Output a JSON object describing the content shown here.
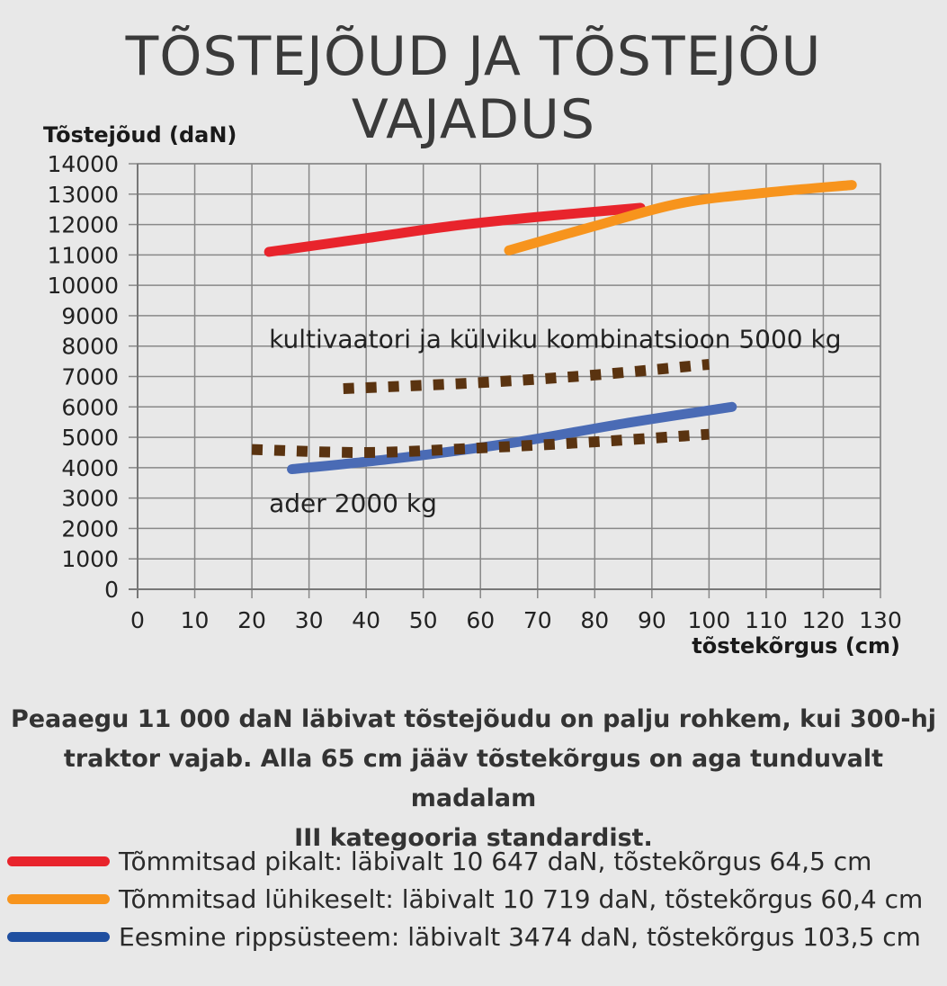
{
  "header": {
    "title": "TÕSTEJÕUD JA TÕSTEJÕU VAJADUS"
  },
  "caption": {
    "lines": [
      "Peaaegu 11 000 daN läbivat tõstejõudu on palju rohkem, kui 300-hj",
      "traktor vajab. Alla 65 cm jääv tõstekõrgus on aga tunduvalt madalam",
      "III kategooria standardist."
    ]
  },
  "legend": {
    "items": [
      {
        "label": "Tõmmitsad pikalt: läbivalt 10 647 daN, tõstekõrgus 64,5 cm",
        "color": "#e8242c"
      },
      {
        "label": "Tõmmitsad lühikeselt: läbivalt 10 719 daN, tõstekõrgus 60,4 cm",
        "color": "#f7941d"
      },
      {
        "label": "Eesmine rippsüsteem: läbivalt 3474 daN, tõstekõrgus 103,5 cm",
        "color": "#1f4fa0"
      }
    ]
  },
  "chart_data": {
    "type": "line",
    "title": "TÕSTEJÕUD JA TÕSTEJÕU VAJADUS",
    "xlabel": "tõstekõrgus (cm)",
    "ylabel": "Tõstejõud (daN)",
    "xlim": [
      0,
      130
    ],
    "ylim": [
      0,
      14000
    ],
    "xticks": [
      0,
      10,
      20,
      30,
      40,
      50,
      60,
      70,
      80,
      90,
      100,
      110,
      120,
      130
    ],
    "yticks": [
      0,
      1000,
      2000,
      3000,
      4000,
      5000,
      6000,
      7000,
      8000,
      9000,
      10000,
      11000,
      12000,
      13000,
      14000
    ],
    "grid": true,
    "series": [
      {
        "name": "Tõmmitsad pikalt: läbivalt 10 647 daN, tõstekõrgus 64,5 cm",
        "color": "#e8242c",
        "style": "solid",
        "x": [
          23,
          40,
          55,
          70,
          88
        ],
        "y": [
          11100,
          11550,
          11950,
          12250,
          12550
        ]
      },
      {
        "name": "Tõmmitsad lühikeselt: läbivalt 10 719 daN, tõstekõrgus 60,4 cm",
        "color": "#f7941d",
        "style": "solid",
        "x": [
          65,
          80,
          95,
          110,
          125
        ],
        "y": [
          11150,
          11950,
          12700,
          13050,
          13300
        ]
      },
      {
        "name": "Eesmine rippsüsteem: läbivalt 3474 daN, tõstekõrgus 103,5 cm",
        "color": "#4a6bb5",
        "style": "solid",
        "x": [
          27,
          45,
          65,
          85,
          104
        ],
        "y": [
          3950,
          4300,
          4800,
          5450,
          6000
        ]
      },
      {
        "name": "",
        "color": "#5a3310",
        "style": "dotted",
        "x": [
          36,
          60,
          80,
          100
        ],
        "y": [
          6600,
          6800,
          7050,
          7400
        ]
      },
      {
        "name": "",
        "color": "#5a3310",
        "style": "dotted",
        "x": [
          20,
          40,
          60,
          80,
          100
        ],
        "y": [
          4600,
          4500,
          4650,
          4850,
          5100
        ]
      }
    ],
    "annotations": [
      {
        "text": "kultivaatori ja külviku kombinatsioon 5000 kg",
        "x": 23,
        "y": 7950
      },
      {
        "text": "ader 2000 kg",
        "x": 23,
        "y": 2550
      }
    ]
  }
}
